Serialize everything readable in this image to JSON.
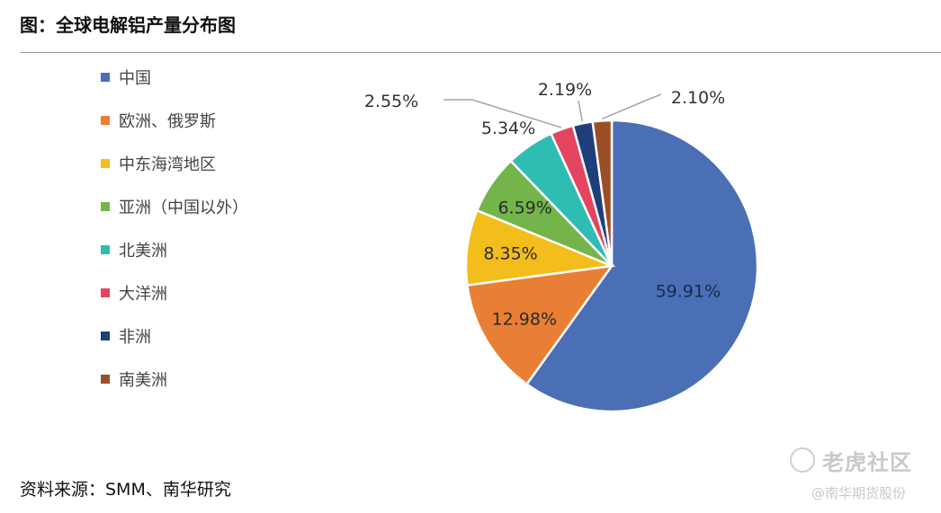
{
  "header": {
    "title": "图：全球电解铝产量分布图"
  },
  "footer": {
    "source": "资料来源：SMM、南华研究"
  },
  "watermark": {
    "logo_text": "老虎社区",
    "sub_text": "@南华期货股份"
  },
  "chart_data": {
    "type": "pie",
    "title": "",
    "legend_position": "left",
    "slices": [
      {
        "label": "中国",
        "value": 59.91,
        "display": "59.91%",
        "color": "#4a6fb5"
      },
      {
        "label": "欧洲、俄罗斯",
        "value": 12.98,
        "display": "12.98%",
        "color": "#e97f35"
      },
      {
        "label": "中东海湾地区",
        "value": 8.35,
        "display": "8.35%",
        "color": "#f3bd1b"
      },
      {
        "label": "亚洲（中国以外）",
        "value": 6.59,
        "display": "6.59%",
        "color": "#73b54a"
      },
      {
        "label": "北美洲",
        "value": 5.34,
        "display": "5.34%",
        "color": "#2fbcb3"
      },
      {
        "label": "大洋洲",
        "value": 2.55,
        "display": "2.55%",
        "color": "#e3455f"
      },
      {
        "label": "非洲",
        "value": 2.19,
        "display": "2.19%",
        "color": "#1f3f7a"
      },
      {
        "label": "南美洲",
        "value": 2.1,
        "display": "2.10%",
        "color": "#9b4f26"
      }
    ]
  }
}
